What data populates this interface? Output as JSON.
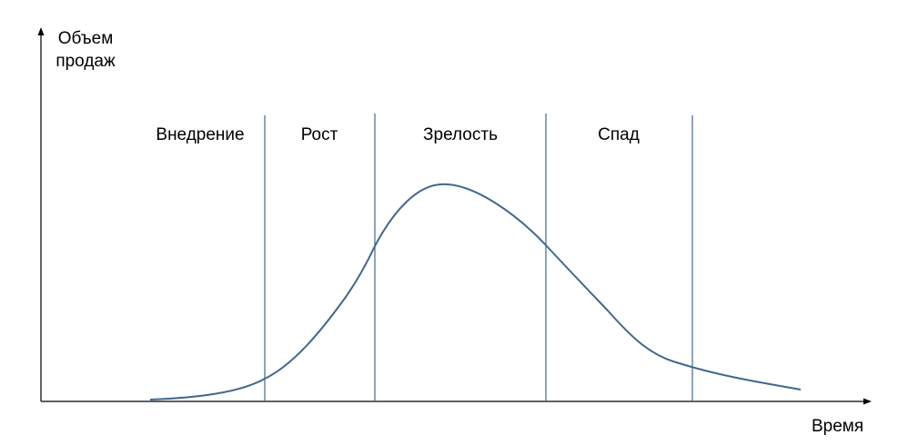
{
  "axes": {
    "y_label": "Объем продаж",
    "x_label": "Время"
  },
  "stages": [
    {
      "label": "Внедрение"
    },
    {
      "label": "Рост"
    },
    {
      "label": "Зрелость"
    },
    {
      "label": "Спад"
    }
  ],
  "colors": {
    "curve": "#41678f",
    "divider": "#41678f",
    "axis": "#000000"
  }
}
